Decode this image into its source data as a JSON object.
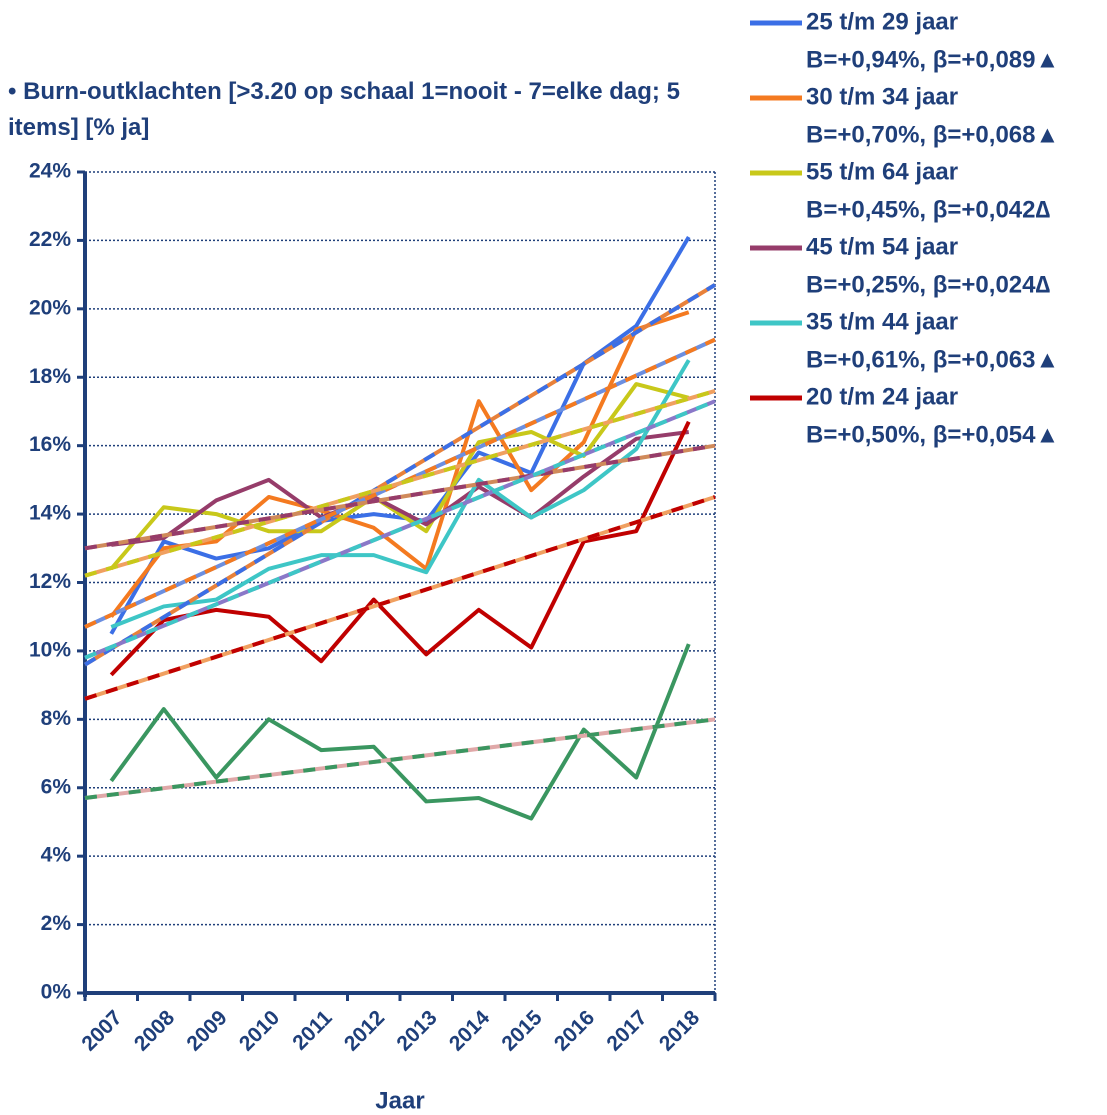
{
  "chart_data": {
    "type": "line",
    "title": "• Burn-outklachten [>3.20 op schaal 1=nooit - 7=elke dag; 5 items] [% ja]",
    "x_label": "Jaar",
    "categories": [
      "2007",
      "2008",
      "2009",
      "2010",
      "2011",
      "2012",
      "2013",
      "2014",
      "2015",
      "2016",
      "2017",
      "2018"
    ],
    "ylim": [
      0,
      24
    ],
    "yticks": [
      {
        "value": 0,
        "label": "0%"
      },
      {
        "value": 2,
        "label": "2%"
      },
      {
        "value": 4,
        "label": "4%"
      },
      {
        "value": 6,
        "label": "6%"
      },
      {
        "value": 8,
        "label": "8%"
      },
      {
        "value": 10,
        "label": "10%"
      },
      {
        "value": 12,
        "label": "12%"
      },
      {
        "value": 14,
        "label": "14%"
      },
      {
        "value": 16,
        "label": "16%"
      },
      {
        "value": 18,
        "label": "18%"
      },
      {
        "value": 20,
        "label": "20%"
      },
      {
        "value": 22,
        "label": "22%"
      },
      {
        "value": 24,
        "label": "24%"
      }
    ],
    "grid": true,
    "legend": "right",
    "series": [
      {
        "name": "25 t/m 29 jaar",
        "stats": "B=+0,94%, β=+0,089▲",
        "color": "#3b6fe6",
        "trend_color": "#e8813a",
        "values": [
          10.5,
          13.2,
          12.7,
          13.0,
          13.8,
          14.0,
          13.8,
          15.8,
          15.2,
          18.4,
          19.5,
          22.1
        ],
        "trend": [
          9.6,
          20.7
        ]
      },
      {
        "name": "30 t/m 34 jaar",
        "stats": "B=+0,70%, β=+0,068▲",
        "color": "#f47a20",
        "trend_color": "#6c8fe0",
        "values": [
          11.0,
          13.0,
          13.2,
          14.5,
          14.1,
          13.6,
          12.4,
          17.3,
          14.7,
          16.1,
          19.4,
          19.9
        ],
        "trend": [
          10.7,
          19.1
        ]
      },
      {
        "name": "55 t/m 64 jaar",
        "stats": "B=+0,45%, β=+0,042∆",
        "color": "#c8c81a",
        "trend_color": "#f0a060",
        "values": [
          12.4,
          14.2,
          14.0,
          13.5,
          13.5,
          14.5,
          13.5,
          16.1,
          16.4,
          15.7,
          17.8,
          17.4
        ],
        "trend": [
          12.2,
          17.6
        ]
      },
      {
        "name": "45 t/m 54 jaar",
        "stats": "B=+0,25%, β=+0,024∆",
        "color": "#963c6a",
        "trend_color": "#d08a5a",
        "values": [
          13.1,
          13.3,
          14.4,
          15.0,
          13.9,
          14.5,
          13.7,
          14.8,
          13.9,
          15.1,
          16.2,
          16.4
        ],
        "trend": [
          13.0,
          16.0
        ]
      },
      {
        "name": "35 t/m 44 jaar",
        "stats": "B=+0,61%, β=+0,063▲",
        "color": "#3ec6c6",
        "trend_color": "#8a78c8",
        "values": [
          10.7,
          11.3,
          11.5,
          12.4,
          12.8,
          12.8,
          12.3,
          15.0,
          13.9,
          14.7,
          15.9,
          18.5
        ],
        "trend": [
          9.8,
          17.3
        ]
      },
      {
        "name": "20 t/m 24 jaar",
        "stats": "B=+0,50%, β=+0,054▲",
        "color": "#c00000",
        "trend_color": "#f0a060",
        "values": [
          9.3,
          10.9,
          11.2,
          11.0,
          9.7,
          11.5,
          9.9,
          11.2,
          10.1,
          13.2,
          13.5,
          16.7
        ],
        "trend": [
          8.6,
          14.5
        ]
      },
      {
        "color": "#3a9660",
        "trend_color": "#e0a8a8",
        "values": [
          6.2,
          8.3,
          6.3,
          8.0,
          7.1,
          7.2,
          5.6,
          5.7,
          5.1,
          7.7,
          6.3,
          10.2
        ],
        "trend": [
          5.7,
          8.0
        ]
      }
    ]
  }
}
